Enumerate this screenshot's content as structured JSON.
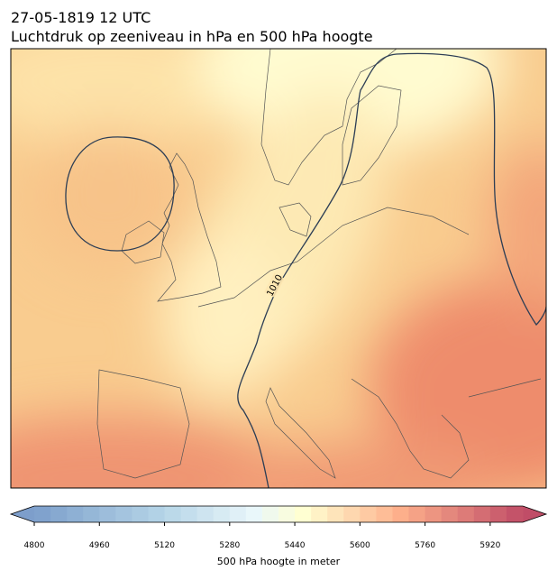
{
  "header": {
    "datetime": "27-05-1819 12 UTC",
    "title": "Luchtdruk op zeeniveau in hPa en 500 hPa hoogte"
  },
  "map": {
    "contour_labels": [
      "1010"
    ]
  },
  "colorbar": {
    "label": "500 hPa hoogte in meter",
    "range": [
      4800,
      6000
    ],
    "ticks": [
      4800,
      4960,
      5120,
      5280,
      5440,
      5600,
      5760,
      5920
    ]
  }
}
